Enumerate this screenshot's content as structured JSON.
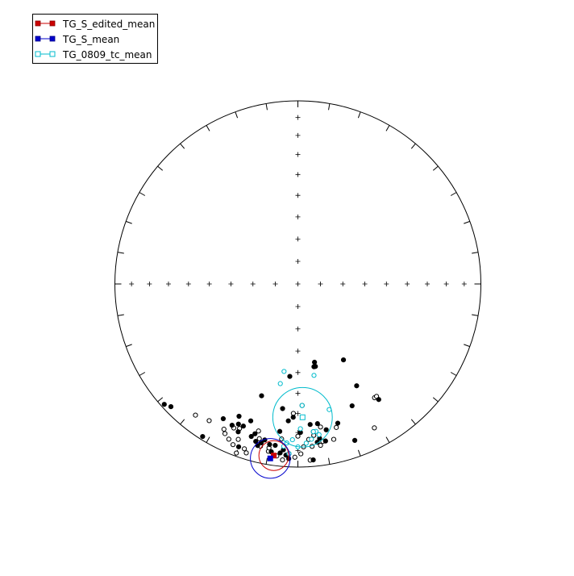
{
  "chart_data": {
    "type": "scatter",
    "projection": "equal-area stereonet",
    "legend_placement": "top-left",
    "colors": {
      "frame": "#000000",
      "edited_mean": "#cc0000",
      "s_mean": "#0000cc",
      "tc_mean": "#00bbcc",
      "down_points": "#000000",
      "up_points": "#000000",
      "tc_points": "#00bbcc"
    },
    "legend": [
      {
        "label": "TG_S_edited_mean",
        "color": "#cc0000",
        "filled": true
      },
      {
        "label": "TG_S_mean",
        "color": "#0000cc",
        "filled": true
      },
      {
        "label": "TG_0809_tc_mean",
        "color": "#00bbcc",
        "filled": false
      }
    ],
    "means": [
      {
        "name": "TG_S_edited_mean",
        "dec": 188,
        "inc": 6,
        "a95": 6,
        "color": "#cc0000",
        "filled": true
      },
      {
        "name": "TG_S_mean",
        "dec": 189,
        "inc": 4,
        "a95": 8,
        "color": "#0000cc",
        "filled": true
      },
      {
        "name": "TG_0809_tc_mean",
        "dec": 178,
        "inc": 28,
        "a95": 12,
        "color": "#00bbcc",
        "filled": false
      }
    ],
    "down_points": [
      [
        228,
        2
      ],
      [
        226,
        4
      ],
      [
        212,
        2
      ],
      [
        209,
        17
      ],
      [
        200,
        6
      ],
      [
        198,
        36
      ],
      [
        199,
        22
      ],
      [
        204,
        22
      ],
      [
        203,
        18
      ],
      [
        205,
        16
      ],
      [
        201,
        18
      ],
      [
        202,
        14
      ],
      [
        197,
        14
      ],
      [
        194,
        10
      ],
      [
        189,
        8
      ],
      [
        185,
        10
      ],
      [
        186,
        8
      ],
      [
        184,
        7
      ],
      [
        183,
        5
      ],
      [
        195,
        12
      ],
      [
        193,
        12
      ],
      [
        190,
        12
      ],
      [
        192,
        14
      ],
      [
        188,
        12
      ],
      [
        185,
        48
      ],
      [
        187,
        32
      ],
      [
        184,
        26
      ],
      [
        178,
        34
      ],
      [
        175,
        24
      ],
      [
        174,
        20
      ],
      [
        173,
        14
      ],
      [
        172,
        16
      ],
      [
        169,
        52
      ],
      [
        168,
        52
      ],
      [
        168,
        54
      ],
      [
        172,
        24
      ],
      [
        169,
        20
      ],
      [
        164,
        22
      ],
      [
        156,
        28
      ],
      [
        149,
        50
      ],
      [
        145,
        24
      ],
      [
        150,
        36
      ],
      [
        175,
        4
      ],
      [
        182,
        28
      ],
      [
        179,
        20
      ],
      [
        170,
        14
      ],
      [
        160,
        10
      ],
      [
        196,
        16
      ],
      [
        187,
        20
      ]
    ],
    "up_points": [
      [
        218,
        10
      ],
      [
        213,
        12
      ],
      [
        207,
        12
      ],
      [
        206,
        10
      ],
      [
        204,
        8
      ],
      [
        202,
        6
      ],
      [
        201,
        10
      ],
      [
        198,
        6
      ],
      [
        197,
        4
      ],
      [
        202,
        16
      ],
      [
        204,
        15
      ],
      [
        195,
        18
      ],
      [
        193,
        10
      ],
      [
        190,
        8
      ],
      [
        187,
        6
      ],
      [
        181,
        6
      ],
      [
        179,
        8
      ],
      [
        178,
        12
      ],
      [
        175,
        12
      ],
      [
        172,
        12
      ],
      [
        171,
        14
      ],
      [
        165,
        20
      ],
      [
        176,
        4
      ],
      [
        183,
        8
      ],
      [
        185,
        4
      ],
      [
        190,
        10
      ],
      [
        186,
        16
      ],
      [
        180,
        18
      ],
      [
        176,
        16
      ],
      [
        174,
        18
      ],
      [
        200,
        2
      ],
      [
        152,
        12
      ],
      [
        146,
        26
      ],
      [
        145,
        26
      ],
      [
        167,
        14
      ],
      [
        194,
        14
      ],
      [
        171,
        22
      ],
      [
        182,
        30
      ]
    ],
    "tc_points": [
      [
        190,
        44
      ],
      [
        189,
        50
      ],
      [
        170,
        48
      ],
      [
        178,
        34
      ],
      [
        173,
        20
      ],
      [
        183,
        8
      ],
      [
        177,
        14
      ],
      [
        175,
        16
      ],
      [
        172,
        18
      ],
      [
        174,
        20
      ],
      [
        180,
        12
      ],
      [
        185,
        12
      ],
      [
        182,
        16
      ],
      [
        166,
        30
      ],
      [
        184,
        14
      ],
      [
        179,
        22
      ]
    ]
  },
  "legend_ui": {
    "item0": "TG_S_edited_mean",
    "item1": "TG_S_mean",
    "item2": "TG_0809_tc_mean"
  }
}
